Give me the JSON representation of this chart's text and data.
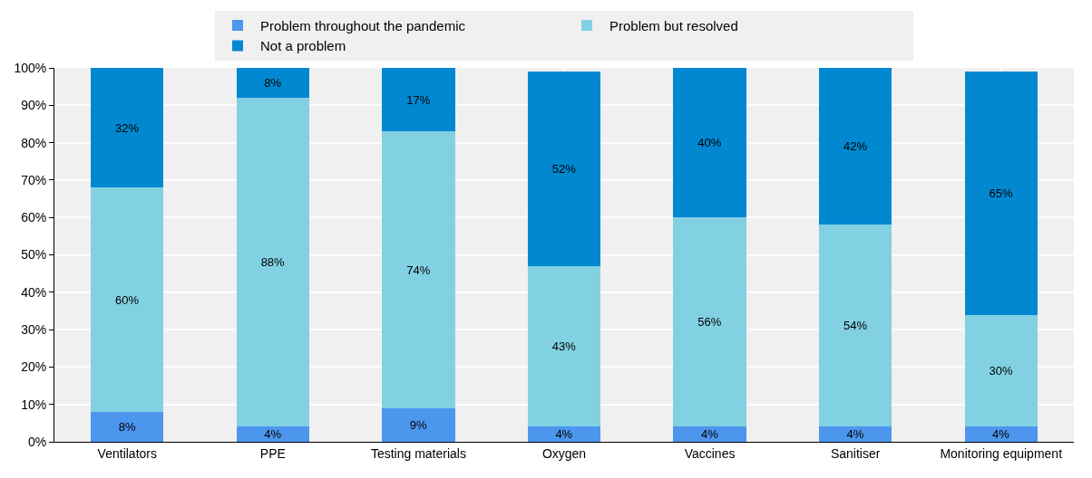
{
  "chart_data": {
    "type": "bar",
    "stacked": true,
    "categories": [
      "Ventilators",
      "PPE",
      "Testing materials",
      "Oxygen",
      "Vaccines",
      "Sanitiser",
      "Monitoring equipment"
    ],
    "series": [
      {
        "name": "Problem throughout the pandemic",
        "color": "#4d96ee",
        "values": [
          8,
          4,
          9,
          4,
          4,
          4,
          4
        ],
        "value_labels": [
          "8%",
          "4%",
          "9%",
          "4%",
          "4%",
          "4%",
          "4%"
        ]
      },
      {
        "name": "Problem but resolved",
        "color": "#82d1e3",
        "values": [
          60,
          88,
          74,
          43,
          56,
          54,
          30
        ],
        "value_labels": [
          "60%",
          "88%",
          "74%",
          "43%",
          "56%",
          "54%",
          "30%"
        ]
      },
      {
        "name": "Not a problem",
        "color": "#0288d1",
        "values": [
          32,
          8,
          17,
          52,
          40,
          42,
          65
        ],
        "value_labels": [
          "32%",
          "8%",
          "17%",
          "52%",
          "40%",
          "42%",
          "65%"
        ]
      }
    ],
    "ylim": [
      0,
      100
    ],
    "yticks": [
      {
        "value": 0,
        "label": "0%"
      },
      {
        "value": 10,
        "label": "10%"
      },
      {
        "value": 20,
        "label": "20%"
      },
      {
        "value": 30,
        "label": "30%"
      },
      {
        "value": 40,
        "label": "40%"
      },
      {
        "value": 50,
        "label": "50%"
      },
      {
        "value": 60,
        "label": "60%"
      },
      {
        "value": 70,
        "label": "70%"
      },
      {
        "value": 80,
        "label": "80%"
      },
      {
        "value": 90,
        "label": "90%"
      },
      {
        "value": 100,
        "label": "100%"
      }
    ],
    "grid": true,
    "legend": "top"
  }
}
